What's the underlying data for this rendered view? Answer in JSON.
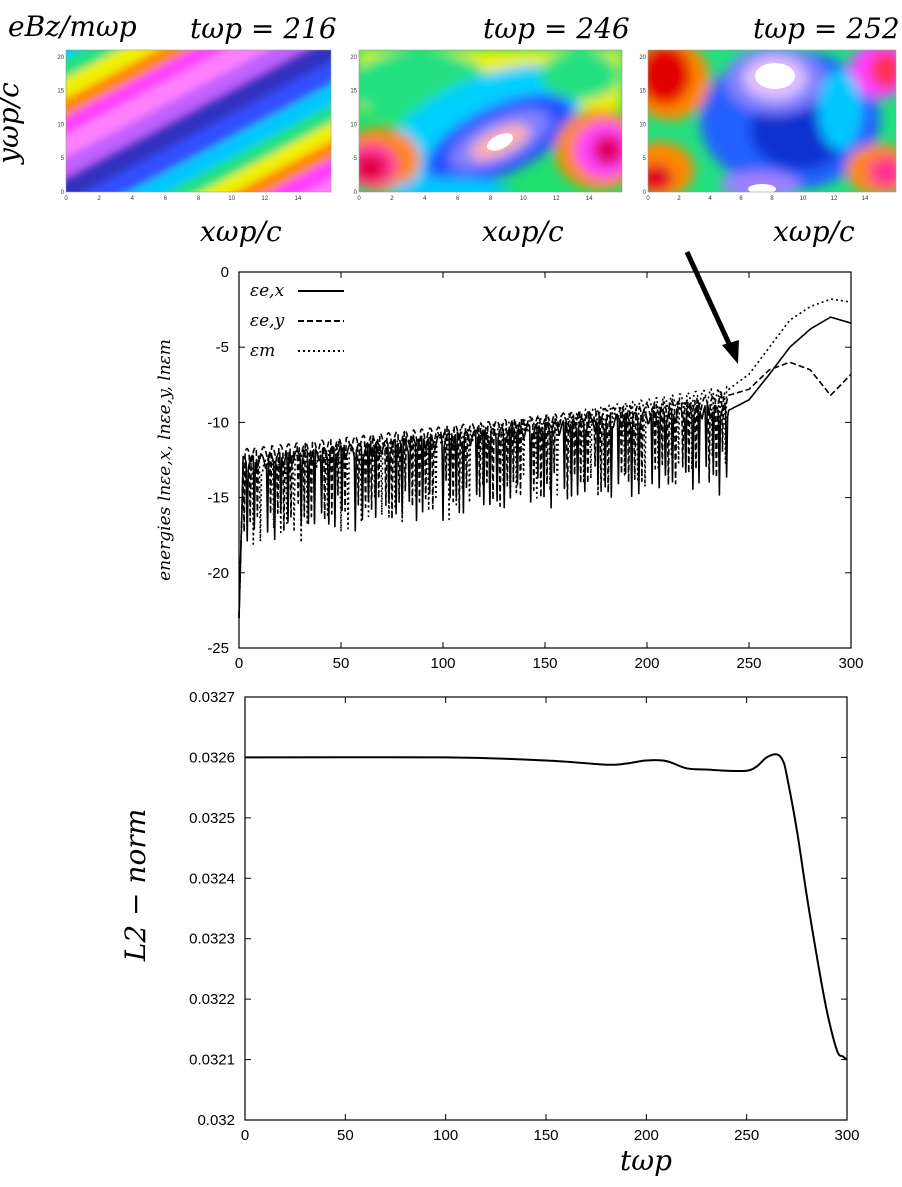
{
  "panel_label": "eBz/mωp",
  "x_axis_label": "xωp/c",
  "y_axis_label": "yωp/c",
  "heatmaps": [
    {
      "time_label": "tωp = 216",
      "t": 216
    },
    {
      "time_label": "tωp = 246",
      "t": 246
    },
    {
      "time_label": "tωp = 252",
      "t": 252
    }
  ],
  "chart_data": [
    {
      "type": "heatmap",
      "title": "",
      "xlabel": "xωp/c",
      "ylabel": "yωp/c",
      "xlim": [
        0,
        16
      ],
      "ylim": [
        0,
        21
      ],
      "x_ticks": [
        "0",
        "2",
        "4",
        "6",
        "8",
        "10",
        "12",
        "14"
      ],
      "y_ticks": [
        "0",
        "5",
        "10",
        "15",
        "20"
      ],
      "panels": [
        "tωp = 216",
        "tωp = 246",
        "tωp = 252"
      ]
    },
    {
      "type": "line",
      "ylabel": "energies lnεe,x, lnεe,y, lnεm",
      "xlim": [
        0,
        300
      ],
      "ylim": [
        -25,
        0
      ],
      "x_ticks": [
        "0",
        "50",
        "100",
        "150",
        "200",
        "250",
        "300"
      ],
      "y_ticks": [
        "0",
        "-5",
        "-10",
        "-15",
        "-20",
        "-25"
      ],
      "legend_position": "top-left",
      "series": [
        {
          "name": "εe,x",
          "style": "solid",
          "x": [
            0,
            230,
            240,
            250,
            260,
            270,
            280,
            290,
            300
          ],
          "y": [
            -12.5,
            -9.0,
            -9.2,
            -8.5,
            -6.8,
            -5.0,
            -3.8,
            -3.0,
            -3.4
          ]
        },
        {
          "name": "εe,y",
          "style": "dashed",
          "x": [
            0,
            230,
            240,
            250,
            260,
            270,
            280,
            290,
            300
          ],
          "y": [
            -12.0,
            -8.5,
            -8.2,
            -7.8,
            -6.5,
            -6.0,
            -6.5,
            -8.2,
            -6.8
          ]
        },
        {
          "name": "εm",
          "style": "dotted",
          "x": [
            0,
            230,
            240,
            250,
            260,
            270,
            280,
            290,
            300
          ],
          "y": [
            -13.0,
            -8.0,
            -7.8,
            -6.8,
            -5.0,
            -3.2,
            -2.3,
            -1.8,
            -2.0
          ]
        }
      ]
    },
    {
      "type": "line",
      "xlabel": "tωp",
      "ylabel": "L2 − norm",
      "xlim": [
        0,
        300
      ],
      "ylim": [
        0.032,
        0.0327
      ],
      "x_ticks": [
        "0",
        "50",
        "100",
        "150",
        "200",
        "250",
        "300"
      ],
      "y_ticks": [
        "0.0327",
        "0.0326",
        "0.0325",
        "0.0324",
        "0.0323",
        "0.0322",
        "0.0321",
        "0.032"
      ],
      "series": [
        {
          "x": [
            0,
            100,
            150,
            180,
            190,
            200,
            210,
            220,
            230,
            240,
            250,
            255,
            260,
            265,
            268,
            270,
            275,
            280,
            285,
            290,
            295,
            298,
            300
          ],
          "y": [
            0.0326,
            0.0326,
            0.032595,
            0.032588,
            0.03259,
            0.032595,
            0.032594,
            0.032582,
            0.03258,
            0.032578,
            0.032578,
            0.032585,
            0.0326,
            0.032605,
            0.032595,
            0.03257,
            0.03248,
            0.03237,
            0.03227,
            0.03218,
            0.032115,
            0.032105,
            0.0321
          ]
        }
      ]
    }
  ]
}
